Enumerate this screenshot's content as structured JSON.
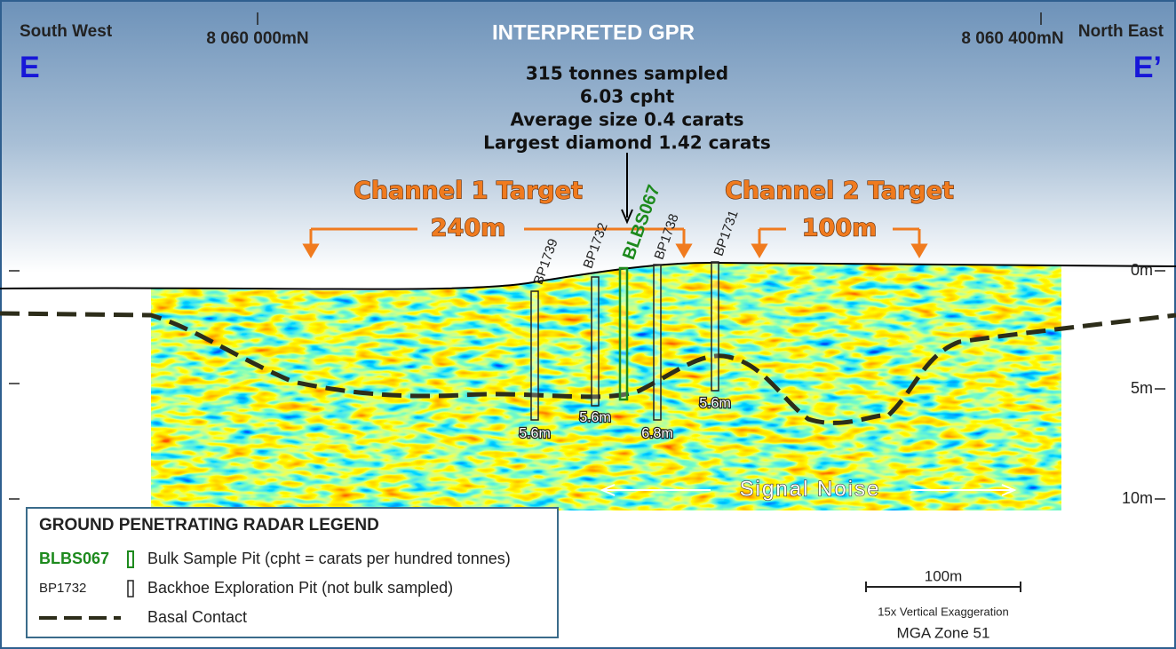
{
  "header": {
    "title": "INTERPRETED GPR",
    "left_direction": "South West",
    "right_direction": "North East",
    "left_northing": "8 060 000mN",
    "right_northing": "8 060 400mN",
    "left_section": "E",
    "right_section": "E’"
  },
  "summary": [
    "315 tonnes sampled",
    "6.03 cpht",
    "Average size 0.4 carats",
    "Largest diamond 1.42 carats"
  ],
  "targets": [
    {
      "label": "Channel 1 Target",
      "width": "240m"
    },
    {
      "label": "Channel 2 Target",
      "width": "100m"
    }
  ],
  "pits": [
    {
      "name": "BP1739",
      "depth": "5.6m"
    },
    {
      "name": "BP1732",
      "depth": "5.6m"
    },
    {
      "name": "BLBS067"
    },
    {
      "name": "BP1738",
      "depth": "6.8m"
    },
    {
      "name": "BP1731",
      "depth": "5.6m"
    }
  ],
  "depth_axis": [
    "0m",
    "5m",
    "10m"
  ],
  "annotation": "Signal Noise",
  "legend": {
    "title": "GROUND PENETRATING RADAR LEGEND",
    "items": [
      {
        "key": "BLBS067",
        "label": "Bulk Sample Pit (cpht = carats per hundred tonnes)"
      },
      {
        "key": "BP1732",
        "label": "Backhoe Exploration Pit (not bulk sampled)"
      },
      {
        "label": "Basal Contact"
      }
    ]
  },
  "scale": {
    "bar": "100m",
    "exaggeration": "15x Vertical Exaggeration",
    "zone": "MGA Zone 51"
  }
}
